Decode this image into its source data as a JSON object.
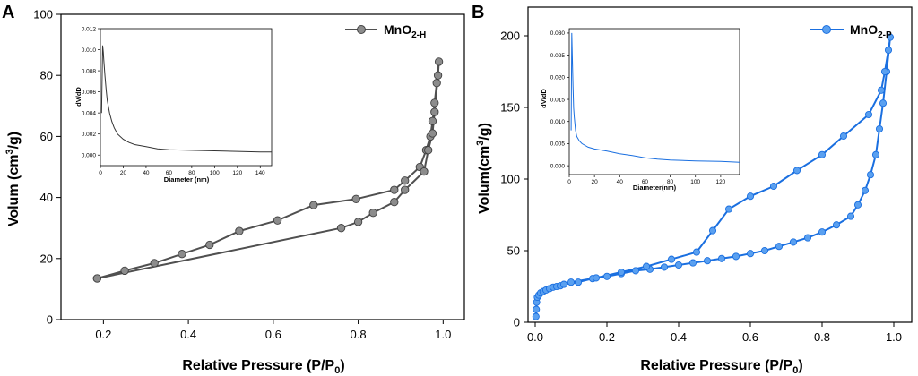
{
  "chart_data": [
    {
      "panel": "A",
      "type": "line",
      "xlabel": "Relative Pressure (P/P0)",
      "ylabel": "Volum (cm3/g)",
      "xlim": [
        0.1,
        1.05
      ],
      "ylim": [
        0,
        100
      ],
      "xticks": [
        0.2,
        0.4,
        0.6,
        0.8,
        1.0
      ],
      "yticks": [
        0,
        20,
        40,
        60,
        80,
        100
      ],
      "color": "#505050",
      "series": [
        {
          "name": "MnO2-H",
          "x": [
            0.185,
            0.25,
            0.32,
            0.385,
            0.45,
            0.52,
            0.61,
            0.695,
            0.795,
            0.885,
            0.91,
            0.945,
            0.96,
            0.97,
            0.975,
            0.98,
            0.985,
            0.99,
            0.988,
            0.98,
            0.975,
            0.965,
            0.955,
            0.91,
            0.885,
            0.835,
            0.8,
            0.76,
            0.185
          ],
          "y": [
            13.5,
            16,
            18.5,
            21.5,
            24.5,
            29,
            32.5,
            37.5,
            39.5,
            42.5,
            45.5,
            50,
            55.5,
            60,
            65,
            71,
            77.5,
            84.5,
            80,
            68,
            61,
            55.5,
            48.5,
            42.5,
            38.5,
            35,
            32,
            30,
            13.5
          ]
        }
      ],
      "legend": {
        "label": "MnO",
        "sub": "2-H",
        "position": "top-right"
      },
      "inset": {
        "xlabel": "Diameter (nm)",
        "ylabel": "dV/dD",
        "xlim": [
          0,
          150
        ],
        "ylim": [
          -0.001,
          0.012
        ],
        "xticks": [
          0,
          20,
          40,
          60,
          80,
          100,
          120,
          140
        ],
        "yticks": [
          "0.000",
          "0.002",
          "0.004",
          "0.006",
          "0.008",
          "0.010",
          "0.012"
        ],
        "x": [
          1,
          2,
          2.5,
          3,
          4,
          5,
          6,
          8,
          10,
          12,
          15,
          20,
          25,
          30,
          40,
          50,
          60,
          80,
          100,
          120,
          140,
          150
        ],
        "y": [
          0.004,
          0.0104,
          0.0098,
          0.009,
          0.0075,
          0.0062,
          0.0052,
          0.004,
          0.0032,
          0.0026,
          0.002,
          0.0015,
          0.0012,
          0.001,
          0.0008,
          0.0006,
          0.0005,
          0.00045,
          0.0004,
          0.00035,
          0.0003,
          0.0003
        ]
      }
    },
    {
      "panel": "B",
      "type": "line",
      "xlabel": "Relative Pressure (P/P0)",
      "ylabel": "Volum(cm3/g)",
      "xlim": [
        -0.02,
        1.05
      ],
      "ylim": [
        0,
        220
      ],
      "xticks": [
        0.0,
        0.2,
        0.4,
        0.6,
        0.8,
        1.0
      ],
      "yticks": [
        0,
        50,
        100,
        150,
        200
      ],
      "color": "#1a6fe0",
      "series": [
        {
          "name": "MnO2-P",
          "x": [
            0.002,
            0.003,
            0.004,
            0.006,
            0.01,
            0.015,
            0.022,
            0.03,
            0.04,
            0.05,
            0.06,
            0.07,
            0.08,
            0.12,
            0.16,
            0.2,
            0.24,
            0.28,
            0.32,
            0.36,
            0.4,
            0.44,
            0.48,
            0.52,
            0.56,
            0.6,
            0.64,
            0.68,
            0.72,
            0.76,
            0.8,
            0.84,
            0.88,
            0.9,
            0.92,
            0.935,
            0.95,
            0.96,
            0.97,
            0.98,
            0.99,
            0.985,
            0.975,
            0.965,
            0.93,
            0.86,
            0.8,
            0.73,
            0.665,
            0.6,
            0.54,
            0.495,
            0.45,
            0.38,
            0.31,
            0.24,
            0.17,
            0.1
          ],
          "y": [
            4,
            9,
            14,
            17.5,
            19,
            20.5,
            21.5,
            22.5,
            23.5,
            24.5,
            25,
            25.5,
            26.5,
            28,
            30.5,
            32,
            34,
            36,
            37,
            38.5,
            40,
            41.5,
            43,
            44.5,
            46,
            48,
            50,
            53,
            56,
            59,
            63,
            68,
            74,
            82,
            92,
            103,
            117,
            135,
            153,
            175,
            199,
            190,
            175,
            162,
            145,
            130,
            117,
            106,
            95,
            88,
            79,
            64,
            49,
            44,
            39,
            35,
            31,
            28
          ]
        }
      ],
      "legend": {
        "label": "MnO",
        "sub": "2-P",
        "position": "top-right"
      },
      "inset": {
        "xlabel": "Diameter(nm)",
        "ylabel": "dV/dD",
        "xlim": [
          0,
          135
        ],
        "ylim": [
          -0.002,
          0.031
        ],
        "xticks": [
          0,
          20,
          40,
          60,
          80,
          100,
          120
        ],
        "yticks": [
          "0.000",
          "0.005",
          "0.010",
          "0.015",
          "0.020",
          "0.025",
          "0.030"
        ],
        "x": [
          1.5,
          2,
          2.5,
          3,
          3.5,
          4,
          5,
          6,
          8,
          10,
          15,
          20,
          30,
          40,
          50,
          60,
          70,
          80,
          100,
          120,
          135
        ],
        "y": [
          0.008,
          0.03,
          0.024,
          0.018,
          0.013,
          0.011,
          0.008,
          0.0066,
          0.0056,
          0.005,
          0.0042,
          0.0038,
          0.0033,
          0.0027,
          0.0023,
          0.0018,
          0.0015,
          0.0013,
          0.0011,
          0.001,
          0.0008
        ]
      }
    }
  ]
}
